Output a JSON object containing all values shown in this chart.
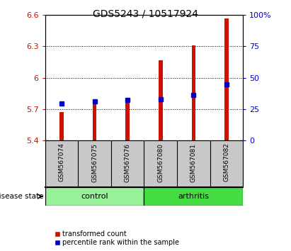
{
  "title": "GDS5243 / 10517924",
  "samples": [
    "GSM567074",
    "GSM567075",
    "GSM567076",
    "GSM567080",
    "GSM567081",
    "GSM567082"
  ],
  "red_values": [
    5.67,
    5.75,
    5.76,
    6.17,
    6.31,
    6.57
  ],
  "blue_values": [
    5.755,
    5.775,
    5.785,
    5.793,
    5.835,
    5.935
  ],
  "ylim_left": [
    5.4,
    6.6
  ],
  "ylim_right": [
    0,
    100
  ],
  "yticks_left": [
    5.4,
    5.7,
    6.0,
    6.3,
    6.6
  ],
  "yticks_right": [
    0,
    25,
    50,
    75,
    100
  ],
  "ytick_labels_left": [
    "5.4",
    "5.7",
    "6",
    "6.3",
    "6.6"
  ],
  "ytick_labels_right": [
    "0",
    "25",
    "50",
    "75",
    "100%"
  ],
  "groups": [
    {
      "label": "control",
      "indices": [
        0,
        1,
        2
      ],
      "color": "#98F098"
    },
    {
      "label": "arthritis",
      "indices": [
        3,
        4,
        5
      ],
      "color": "#44DD44"
    }
  ],
  "bar_color": "#CC1100",
  "marker_color": "#0000CC",
  "bar_width": 0.12,
  "base_value": 5.4,
  "grid_color": "#000000",
  "bg_plot": "#FFFFFF",
  "bg_label_box": "#C8C8C8",
  "disease_state_label": "disease state",
  "legend_red": "transformed count",
  "legend_blue": "percentile rank within the sample",
  "title_fontsize": 10,
  "tick_fontsize": 8,
  "label_fontsize": 7
}
